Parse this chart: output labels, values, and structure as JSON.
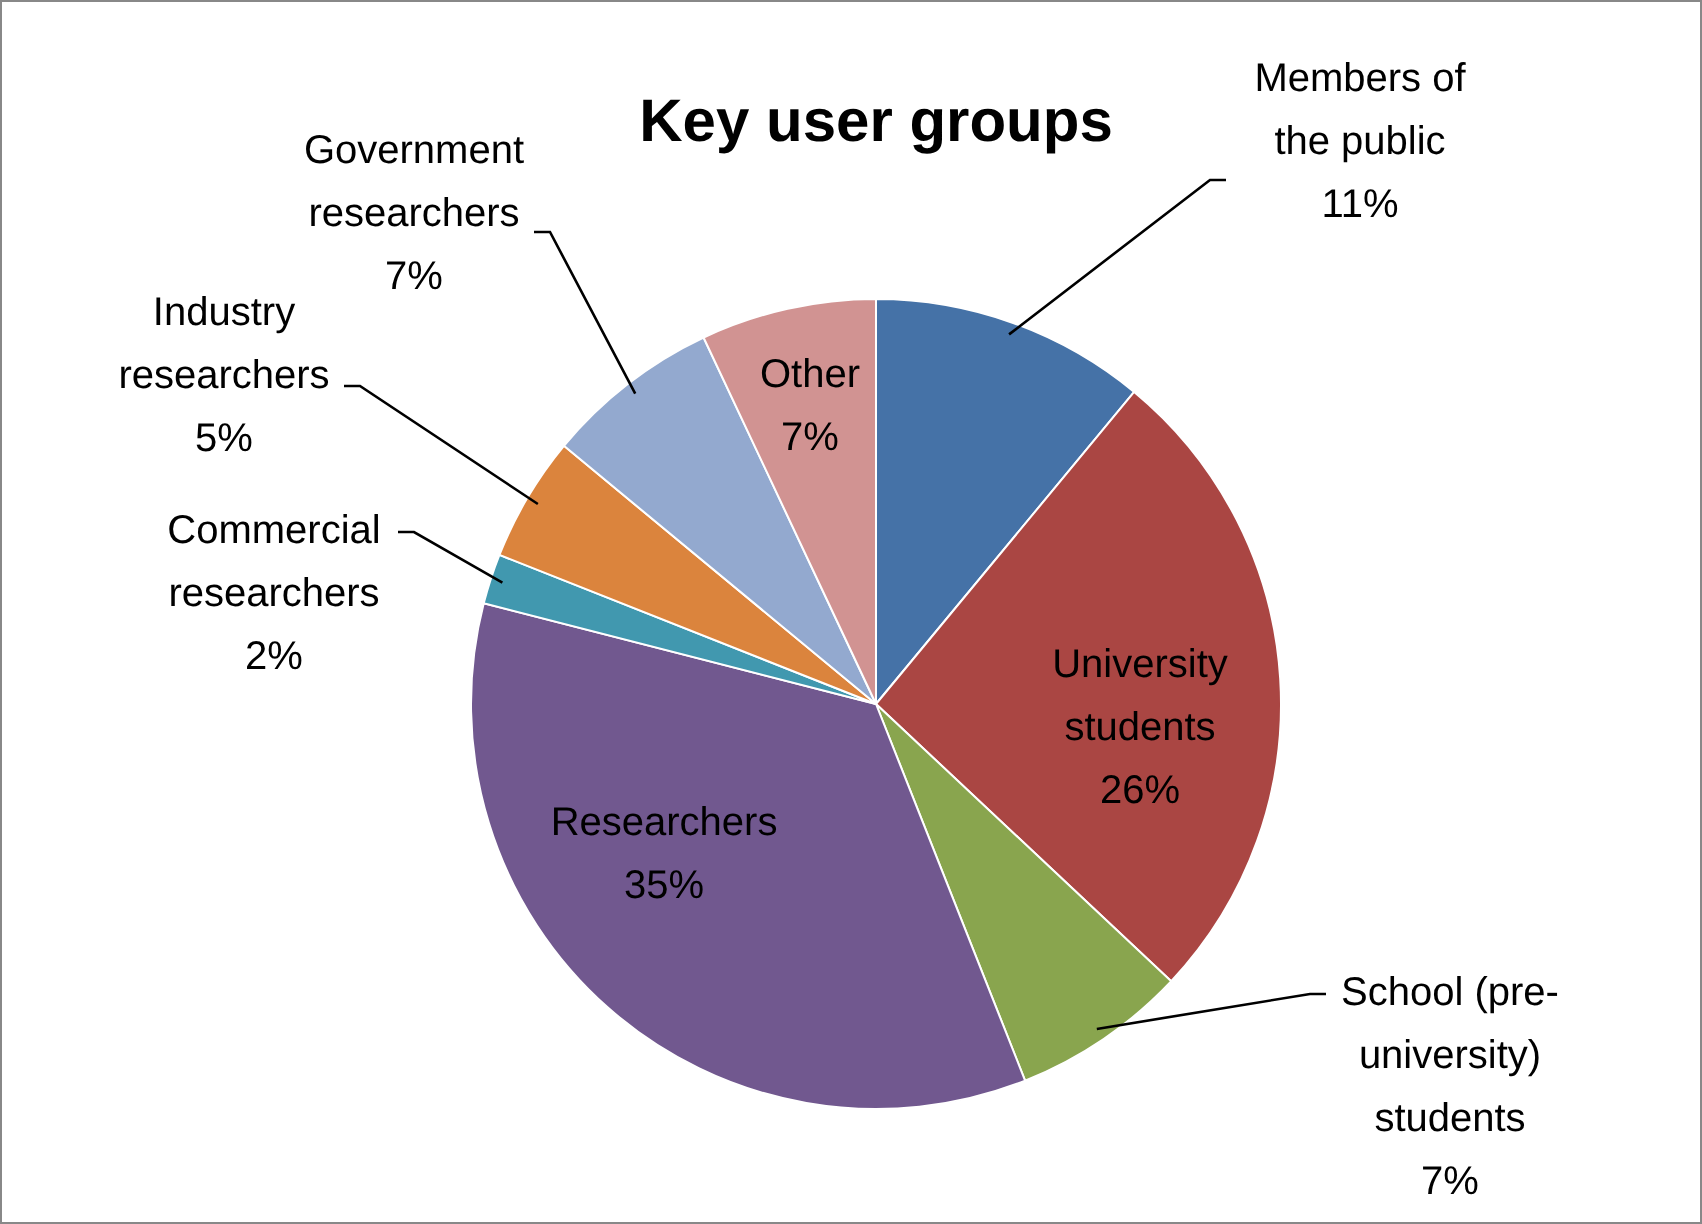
{
  "chart_data": {
    "type": "pie",
    "title": "Key user groups",
    "categories": [
      "Members of the public",
      "University students",
      "School (pre-university) students",
      "Researchers",
      "Commercial researchers",
      "Industry researchers",
      "Government researchers",
      "Other"
    ],
    "values": [
      11,
      26,
      7,
      35,
      2,
      5,
      7,
      7
    ],
    "colors": [
      "#4572a7",
      "#aa4643",
      "#89a54e",
      "#71588f",
      "#4198af",
      "#db843d",
      "#93a9cf",
      "#d19392"
    ],
    "value_labels": [
      "11%",
      "26%",
      "7%",
      "35%",
      "2%",
      "5%",
      "7%",
      "7%"
    ],
    "legend": false
  }
}
